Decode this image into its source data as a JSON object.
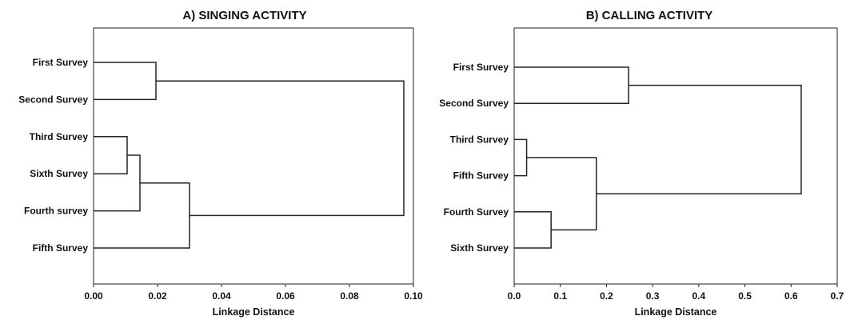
{
  "chart_data": [
    {
      "type": "dendrogram",
      "title": "A) SINGING ACTIVITY",
      "xlabel": "Linkage Distance",
      "xlim": [
        0,
        0.1
      ],
      "ticks": [
        "0.00",
        "0.02",
        "0.04",
        "0.06",
        "0.08",
        "0.10"
      ],
      "tick_values": [
        0,
        0.02,
        0.04,
        0.06,
        0.08,
        0.1
      ],
      "leaves": [
        "First Survey",
        "Second Survey",
        "Third Survey",
        "Sixth Survey",
        "Fourth survey",
        "Fifth Survey"
      ],
      "merges": [
        {
          "a": 2,
          "b": 3,
          "height": 0.0105
        },
        {
          "a": 6,
          "b": 4,
          "height": 0.0145
        },
        {
          "a": 0,
          "b": 1,
          "height": 0.0195
        },
        {
          "a": 7,
          "b": 5,
          "height": 0.03
        },
        {
          "a": 8,
          "b": 9,
          "height": 0.097
        }
      ]
    },
    {
      "type": "dendrogram",
      "title": "B) CALLING ACTIVITY",
      "xlabel": "Linkage Distance",
      "xlim": [
        0,
        0.7
      ],
      "ticks": [
        "0.0",
        "0.1",
        "0.2",
        "0.3",
        "0.4",
        "0.5",
        "0.6",
        "0.7"
      ],
      "tick_values": [
        0,
        0.1,
        0.2,
        0.3,
        0.4,
        0.5,
        0.6,
        0.7
      ],
      "leaves": [
        "First Survey",
        "Second Survey",
        "Third Survey",
        "Fifth Survey",
        "Fourth Survey",
        "Sixth Survey"
      ],
      "merges": [
        {
          "a": 2,
          "b": 3,
          "height": 0.027
        },
        {
          "a": 4,
          "b": 5,
          "height": 0.08
        },
        {
          "a": 7,
          "b": 6,
          "height": 0.178
        },
        {
          "a": 0,
          "b": 1,
          "height": 0.248
        },
        {
          "a": 9,
          "b": 8,
          "height": 0.622
        }
      ]
    }
  ]
}
